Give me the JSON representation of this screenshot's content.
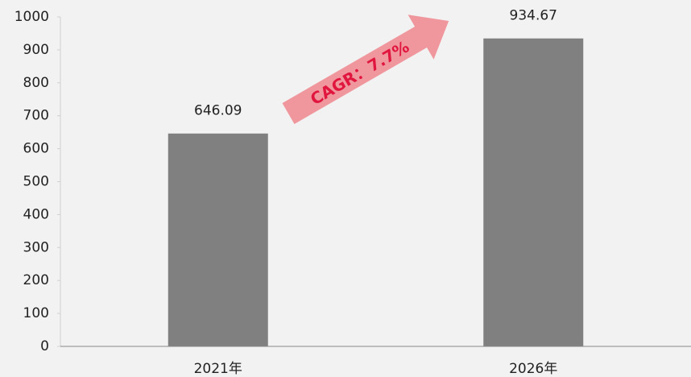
{
  "chart_data": {
    "type": "bar",
    "categories": [
      "2021年",
      "2026年"
    ],
    "values": [
      646.09,
      934.67
    ],
    "color": "#808080",
    "ylim": [
      0,
      1000
    ],
    "yticks": [
      0,
      100,
      200,
      300,
      400,
      500,
      600,
      700,
      800,
      900,
      1000
    ],
    "annotation": "CAGR：7.7%"
  }
}
